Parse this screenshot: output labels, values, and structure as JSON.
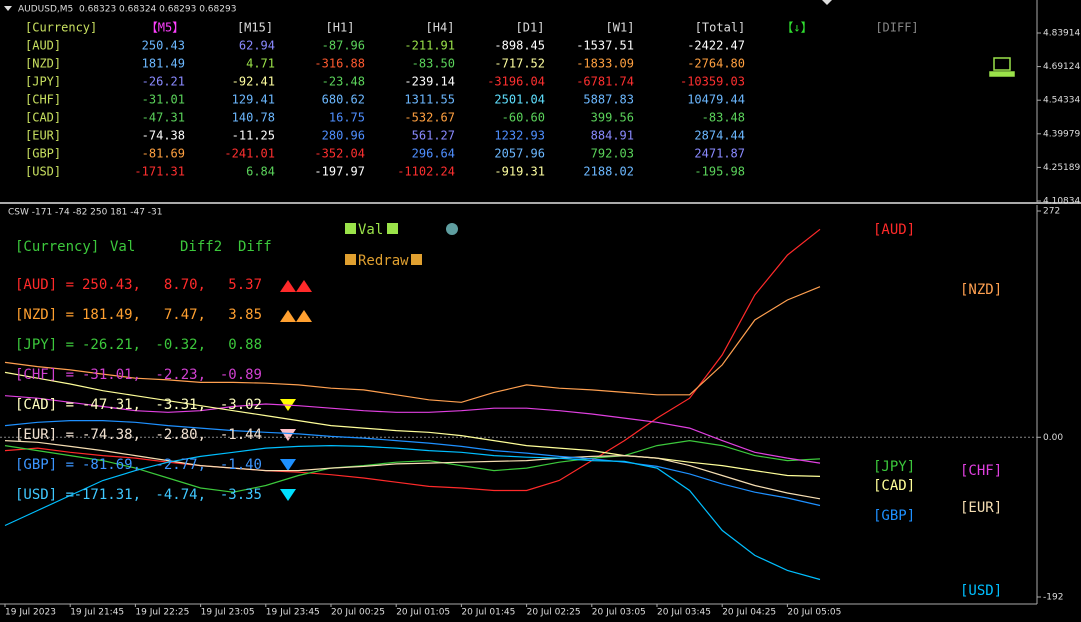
{
  "header": {
    "title": "AUDUSD,M5  0.68323 0.68324 0.68293 0.68293"
  },
  "top_panel": {
    "axis_labels": [
      "4.83914",
      "4.69124",
      "4.54334",
      "4.39979",
      "4.25189",
      "4.10834"
    ]
  },
  "table": {
    "header": [
      "[Currency]",
      "【M5】",
      "[M15]",
      "[H1]",
      "[H4]",
      "[D1]",
      "[W1]",
      "[Total]",
      "【↓】",
      "[DIFF]"
    ],
    "rows": [
      [
        "[AUD]",
        "250.43",
        "62.94",
        "-87.96",
        "-211.91",
        "-898.45",
        "-1537.51",
        "-2422.47"
      ],
      [
        "[NZD]",
        "181.49",
        "4.71",
        "-316.88",
        "-83.50",
        "-717.52",
        "-1833.09",
        "-2764.80"
      ],
      [
        "[JPY]",
        "-26.21",
        "-92.41",
        "-23.48",
        "-239.14",
        "-3196.04",
        "-6781.74",
        "-10359.03"
      ],
      [
        "[CHF]",
        "-31.01",
        "129.41",
        "680.62",
        "1311.55",
        "2501.04",
        "5887.83",
        "10479.44"
      ],
      [
        "[CAD]",
        "-47.31",
        "140.78",
        "16.75",
        "-532.67",
        "-60.60",
        "399.56",
        "-83.48"
      ],
      [
        "[EUR]",
        "-74.38",
        "-11.25",
        "280.96",
        "561.27",
        "1232.93",
        "884.91",
        "2874.44"
      ],
      [
        "[GBP]",
        "-81.69",
        "-241.01",
        "-352.04",
        "296.64",
        "2057.96",
        "792.03",
        "2471.87"
      ],
      [
        "[USD]",
        "-171.31",
        "6.84",
        "-197.97",
        "-1102.24",
        "-919.31",
        "2188.02",
        "-195.98"
      ]
    ]
  },
  "indicator_panel": {
    "header": [
      "[Currency]",
      "Val",
      "Diff2",
      "Diff"
    ],
    "rows": [
      [
        "[AUD] =",
        "250.43,",
        "8.70,",
        "5.37"
      ],
      [
        "[NZD] =",
        "181.49,",
        "7.47,",
        "3.85"
      ],
      [
        "[JPY] =",
        "-26.21,",
        "-0.32,",
        "0.88"
      ],
      [
        "[CHF] =",
        "-31.01,",
        "-2.23,",
        "-0.89"
      ],
      [
        "[CAD] =",
        "-47.31,",
        "-3.31,",
        "-3.02"
      ],
      [
        "[EUR] =",
        "-74.38,",
        "-2.80,",
        "-1.44"
      ],
      [
        "[GBP] =",
        "-81.69,",
        "-2.77,",
        "-1.40"
      ],
      [
        "[USD] =",
        "-171.31,",
        "-4.74,",
        "-3.35"
      ]
    ],
    "buttons": [
      "Val",
      "Redraw"
    ]
  },
  "chart_data": {
    "type": "line",
    "title": "CSW -171 -74 -82 250 181 -47 -31",
    "categories": [
      "19 Jul 2023",
      null,
      "19 Jul 21:45",
      null,
      "19 Jul 22:25",
      null,
      "19 Jul 23:05",
      null,
      "19 Jul 23:45",
      null,
      "20 Jul 00:25",
      null,
      "20 Jul 01:05",
      null,
      "20 Jul 01:45",
      null,
      "20 Jul 02:25",
      null,
      "20 Jul 03:05",
      null,
      "20 Jul 03:45",
      null,
      "20 Jul 04:25",
      null,
      "20 Jul 05:05",
      null
    ],
    "ylim": [
      -192,
      272
    ],
    "yticks": [
      272,
      {
        "value": 0,
        "label": "0.00"
      },
      -192
    ],
    "series": [
      {
        "name": "[AUD]",
        "color": "#ff2a2a",
        "values": [
          -16,
          -13,
          -18,
          -22,
          -25,
          -30,
          -34,
          -37,
          -40,
          -42,
          -45,
          -49,
          -54,
          -59,
          -61,
          -64,
          -64,
          -52,
          -28,
          -4,
          23,
          47,
          99,
          171,
          219,
          250
        ]
      },
      {
        "name": "[NZD]",
        "color": "#ffa050",
        "values": [
          90,
          85,
          81,
          76,
          71,
          69,
          66,
          66,
          65,
          63,
          59,
          57,
          51,
          45,
          42,
          54,
          63,
          59,
          57,
          54,
          51,
          51,
          87,
          141,
          165,
          181
        ]
      },
      {
        "name": "[JPY]",
        "color": "#3cc83c",
        "values": [
          -10,
          -16,
          -22,
          -28,
          -37,
          -49,
          -61,
          -66,
          -58,
          -46,
          -37,
          -34,
          -30,
          -28,
          -34,
          -40,
          -37,
          -30,
          -25,
          -22,
          -10,
          -4,
          -10,
          -22,
          -28,
          -26
        ]
      },
      {
        "name": "[CHF]",
        "color": "#e040e0",
        "values": [
          50,
          47,
          42,
          37,
          32,
          30,
          32,
          37,
          40,
          38,
          35,
          32,
          30,
          30,
          32,
          35,
          35,
          32,
          28,
          23,
          18,
          11,
          -4,
          -18,
          -25,
          -31
        ]
      },
      {
        "name": "[CAD]",
        "color": "#ffff99",
        "values": [
          78,
          71,
          64,
          56,
          50,
          44,
          38,
          32,
          26,
          20,
          14,
          11,
          8,
          6,
          2,
          -4,
          -10,
          -13,
          -16,
          -22,
          -25,
          -30,
          -34,
          -40,
          -46,
          -47
        ]
      },
      {
        "name": "[EUR]",
        "color": "#f5deb3",
        "values": [
          -4,
          -6,
          -11,
          -16,
          -22,
          -28,
          -34,
          -37,
          -40,
          -40,
          -37,
          -35,
          -32,
          -31,
          -30,
          -29,
          -28,
          -25,
          -23,
          -22,
          -25,
          -34,
          -46,
          -58,
          -67,
          -74
        ]
      },
      {
        "name": "[GBP]",
        "color": "#1e90ff",
        "values": [
          14,
          18,
          20,
          20,
          18,
          14,
          11,
          8,
          6,
          4,
          1,
          -1,
          -4,
          -7,
          -11,
          -16,
          -19,
          -23,
          -26,
          -30,
          -35,
          -44,
          -56,
          -66,
          -73,
          -82
        ]
      },
      {
        "name": "[USD]",
        "color": "#00bfff",
        "values": [
          -106,
          -88,
          -70,
          -52,
          -40,
          -30,
          -23,
          -18,
          -13,
          -11,
          -10,
          -11,
          -13,
          -16,
          -18,
          -22,
          -24,
          -25,
          -28,
          -29,
          -37,
          -64,
          -112,
          -142,
          -160,
          -171
        ]
      }
    ]
  }
}
